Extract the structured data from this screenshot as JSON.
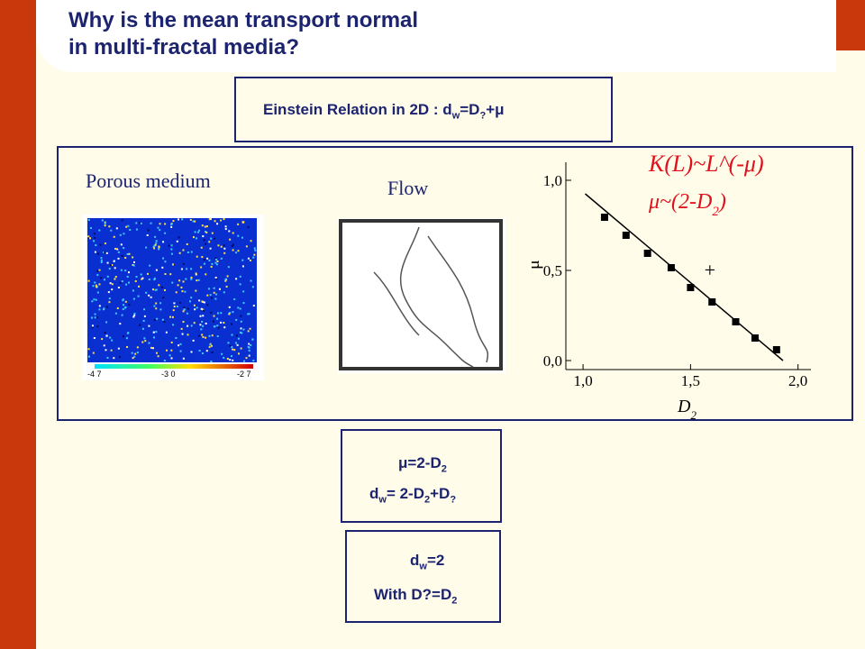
{
  "title": [
    "Why is the mean transport normal",
    "in multi-fractal media?"
  ],
  "einstein": [
    "Einstein Relation in 2D : d",
    "w",
    "=D",
    "?",
    "+μ"
  ],
  "panel": {
    "porous_label": "Porous medium",
    "flow_label": "Flow",
    "colorbar_labels": [
      "-4 7",
      "-3 0",
      "-2 7"
    ]
  },
  "plot": {
    "title1": "K(L)~L^(-μ)",
    "title2": [
      "μ~(2-D",
      "2",
      ")"
    ],
    "xlabel": [
      "D",
      "2"
    ],
    "ylabel": "μ",
    "xlim": [
      0.92,
      2.06
    ],
    "ylim": [
      -0.05,
      1.1
    ],
    "xticks": [
      {
        "value": 1.0,
        "label": "1,0"
      },
      {
        "value": 1.5,
        "label": "1,5"
      },
      {
        "value": 2.0,
        "label": "2,0"
      }
    ],
    "yticks": [
      {
        "value": 0.0,
        "label": "0,0"
      },
      {
        "value": 0.5,
        "label": "0,5"
      },
      {
        "value": 1.0,
        "label": "1,0"
      }
    ],
    "points": {
      "x": [
        1.1,
        1.2,
        1.3,
        1.41,
        1.5,
        1.6,
        1.71,
        1.8,
        1.9
      ],
      "y": [
        0.795,
        0.695,
        0.595,
        0.515,
        0.405,
        0.325,
        0.215,
        0.125,
        0.06
      ]
    },
    "fit": {
      "x": [
        1.01,
        1.93
      ],
      "y": [
        0.925,
        0.0
      ]
    },
    "plus": {
      "x": 1.59,
      "y": 0.5,
      "label": "+"
    }
  },
  "box1": {
    "line1": [
      "μ=2-D",
      "2"
    ],
    "line2": [
      "d",
      "w",
      "= 2-D",
      "2",
      "+D",
      "?"
    ]
  },
  "box2": {
    "line1": [
      "d",
      "w",
      "=2"
    ],
    "line2": [
      "With D?=D",
      "2"
    ]
  }
}
